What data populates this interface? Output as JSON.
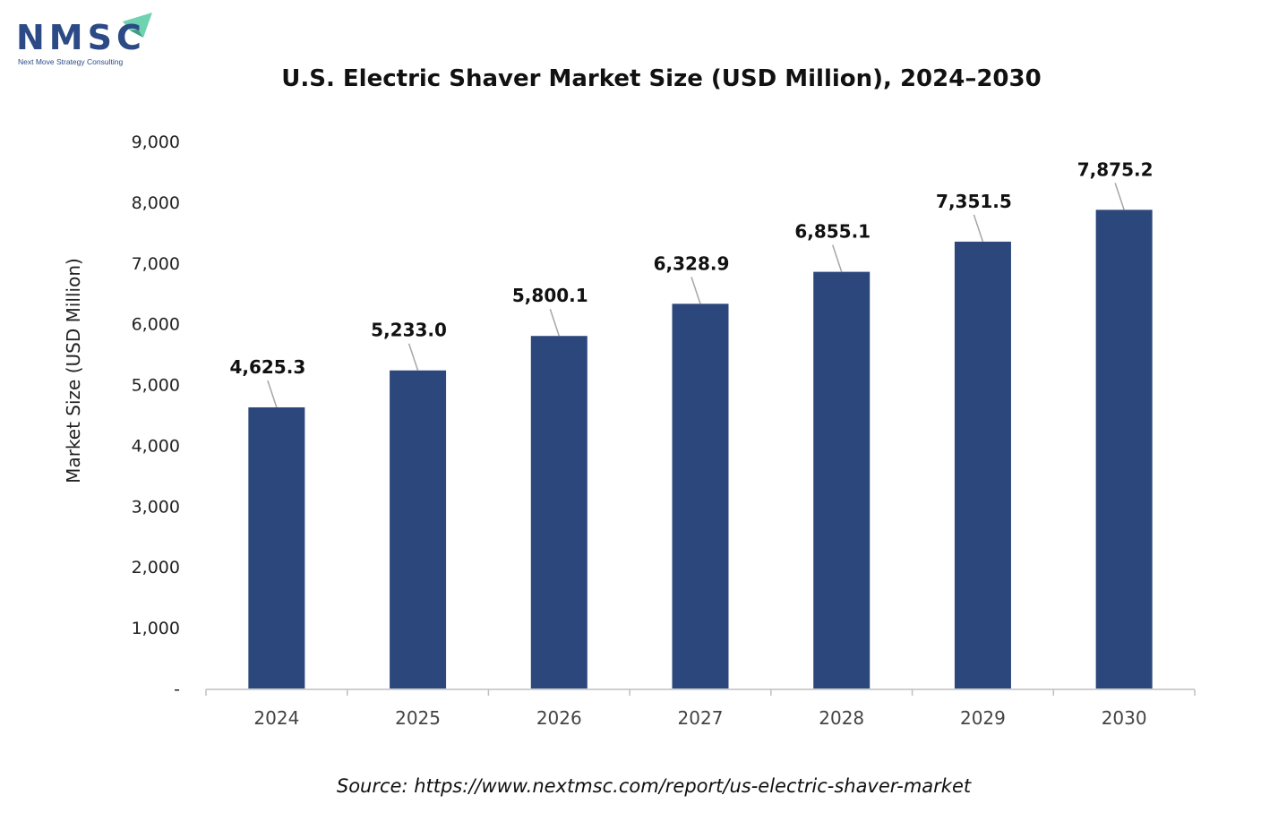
{
  "logo": {
    "text": "NMSC",
    "tagline": "Next Move Strategy Consulting",
    "accent_color": "#6fd3b0",
    "text_color": "#2b4a86"
  },
  "chart_data": {
    "type": "bar",
    "title": "U.S. Electric Shaver Market Size (USD Million), 2024–2030",
    "xlabel": "",
    "ylabel": "Market Size (USD Million)",
    "categories": [
      "2024",
      "2025",
      "2026",
      "2027",
      "2028",
      "2029",
      "2030"
    ],
    "values": [
      4625.3,
      5233.0,
      5800.1,
      6328.9,
      6855.1,
      7351.5,
      7875.2
    ],
    "value_labels": [
      "4,625.3",
      "5,233.0",
      "5,800.1",
      "6,328.9",
      "6,855.1",
      "7,351.5",
      "7,875.2"
    ],
    "ylim": [
      0,
      9000
    ],
    "yticks": [
      0,
      1000,
      2000,
      3000,
      4000,
      5000,
      6000,
      7000,
      8000,
      9000
    ],
    "ytick_labels": [
      "-",
      "1,000",
      "2,000",
      "3,000",
      "4,000",
      "5,000",
      "6,000",
      "7,000",
      "8,000",
      "9,000"
    ],
    "bar_color": "#2c477b",
    "grid": false,
    "legend": "none"
  },
  "source": "Source: https://www.nextmsc.com/report/us-electric-shaver-market"
}
